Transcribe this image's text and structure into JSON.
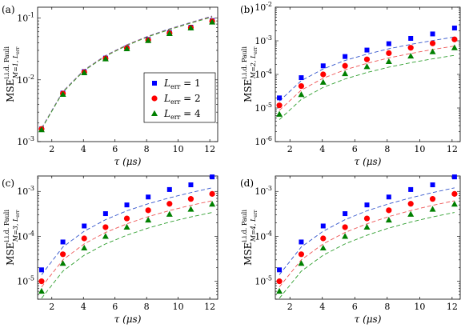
{
  "figure": {
    "x_axis_label": "τ (μs)",
    "x_ticks": [
      2,
      4,
      6,
      8,
      10,
      12
    ],
    "legend": {
      "entries": [
        {
          "label": "L_err = 1",
          "marker": "square",
          "color": "#0000ff"
        },
        {
          "label": "L_err = 2",
          "marker": "circle",
          "color": "#ff0000"
        },
        {
          "label": "L_err = 4",
          "marker": "triangle",
          "color": "#008000"
        }
      ]
    },
    "colors": {
      "L1": "#0000ff",
      "L2": "#ff0000",
      "L4": "#008000",
      "L1_fit": "#3355cc",
      "L2_fit": "#ee5555",
      "L4_fit": "#2f9f2f"
    }
  },
  "chart_data": [
    {
      "panel": "(a)",
      "type": "scatter",
      "ylabel": "MSE^{i.i.d. Pauli}_{M=1, L_err}",
      "yscale": "log",
      "xlim": [
        1.1,
        12.5
      ],
      "ylim": [
        0.001,
        0.15
      ],
      "x": [
        1.35,
        2.7,
        4.05,
        5.4,
        6.75,
        8.1,
        9.45,
        10.8,
        12.15
      ],
      "series": [
        {
          "name": "L_err = 1",
          "marker": "square",
          "values": [
            0.0016,
            0.0061,
            0.0136,
            0.0225,
            0.033,
            0.045,
            0.058,
            0.071,
            0.091
          ]
        },
        {
          "name": "L_err = 2",
          "marker": "circle",
          "values": [
            0.0016,
            0.006,
            0.0133,
            0.0222,
            0.0325,
            0.044,
            0.057,
            0.07,
            0.089
          ]
        },
        {
          "name": "L_err = 4",
          "marker": "triangle",
          "values": [
            0.00155,
            0.0058,
            0.013,
            0.0218,
            0.0318,
            0.0432,
            0.056,
            0.069,
            0.086
          ]
        }
      ],
      "fits": [
        {
          "of": "L_err = 1",
          "values": [
            0.00165,
            0.0065,
            0.0145,
            0.0248,
            0.037,
            0.051,
            0.067,
            0.085,
            0.108
          ]
        },
        {
          "of": "L_err = 2",
          "values": [
            0.00162,
            0.0064,
            0.0143,
            0.0245,
            0.0366,
            0.0505,
            0.066,
            0.084,
            0.106
          ]
        },
        {
          "of": "L_err = 4",
          "values": [
            0.0016,
            0.0063,
            0.0141,
            0.0241,
            0.036,
            0.05,
            0.065,
            0.083,
            0.104
          ]
        }
      ],
      "ytick_labels": [
        "10^-3",
        "10^-2",
        "10^-1"
      ],
      "yticks": [
        0.001,
        0.01,
        0.1
      ]
    },
    {
      "panel": "(b)",
      "type": "scatter",
      "ylabel": "MSE^{i.i.d. Pauli}_{M=2, L_err}",
      "yscale": "log",
      "xlim": [
        1.1,
        12.5
      ],
      "ylim": [
        1e-06,
        0.01
      ],
      "x": [
        1.35,
        2.7,
        4.05,
        5.4,
        6.75,
        8.1,
        9.45,
        10.8,
        12.15
      ],
      "series": [
        {
          "name": "L_err = 1",
          "marker": "square",
          "values": [
            2e-05,
            8e-05,
            0.00018,
            0.00034,
            0.00053,
            0.00082,
            0.00118,
            0.0016,
            0.0024
          ]
        },
        {
          "name": "L_err = 2",
          "marker": "circle",
          "values": [
            1.2e-05,
            4.5e-05,
            0.0001,
            0.00018,
            0.00028,
            0.00043,
            0.00062,
            0.00084,
            0.0011
          ]
        },
        {
          "name": "L_err = 4",
          "marker": "triangle",
          "values": [
            6.5e-06,
            2.5e-05,
            5.8e-05,
            0.000105,
            0.00017,
            0.00024,
            0.00035,
            0.00047,
            0.00062
          ]
        }
      ],
      "fits": [
        {
          "of": "L_err = 1",
          "values": [
            1.6e-05,
            6.5e-05,
            0.000145,
            0.00026,
            0.0004,
            0.00058,
            0.00078,
            0.00102,
            0.0013
          ]
        },
        {
          "of": "L_err = 2",
          "values": [
            8.5e-06,
            3.4e-05,
            7.7e-05,
            0.000137,
            0.000213,
            0.00031,
            0.00042,
            0.00055,
            0.0007
          ]
        },
        {
          "of": "L_err = 4",
          "values": [
            4.5e-06,
            1.8e-05,
            4.1e-05,
            7.3e-05,
            0.000114,
            0.000164,
            0.000223,
            0.00029,
            0.00037
          ]
        }
      ],
      "ytick_labels": [
        "10^-6",
        "10^-5",
        "10^-4",
        "10^-3",
        "10^-2"
      ],
      "yticks": [
        1e-06,
        1e-05,
        0.0001,
        0.001,
        0.01
      ]
    },
    {
      "panel": "(c)",
      "type": "scatter",
      "ylabel": "MSE^{i.i.d. Pauli}_{M=3, L_err}",
      "yscale": "log",
      "xlim": [
        1.1,
        12.5
      ],
      "ylim": [
        4e-06,
        0.0022
      ],
      "x": [
        1.35,
        2.7,
        4.05,
        5.4,
        6.75,
        8.1,
        9.45,
        10.8,
        12.15
      ],
      "series": [
        {
          "name": "L_err = 1",
          "marker": "square",
          "values": [
            1.8e-05,
            7.5e-05,
            0.00017,
            0.00032,
            0.0005,
            0.00075,
            0.0011,
            0.0014,
            0.0021
          ]
        },
        {
          "name": "L_err = 2",
          "marker": "circle",
          "values": [
            1e-05,
            4e-05,
            9e-05,
            0.00016,
            0.00025,
            0.00038,
            0.00053,
            0.00068,
            0.00088
          ]
        },
        {
          "name": "L_err = 4",
          "marker": "triangle",
          "values": [
            6e-06,
            2.5e-05,
            5.5e-05,
            0.0001,
            0.00016,
            0.00023,
            0.00031,
            0.0004,
            0.00052
          ]
        }
      ],
      "fits": [
        {
          "of": "L_err = 1",
          "values": [
            1.4e-05,
            5.8e-05,
            0.00013,
            0.000235,
            0.00037,
            0.00053,
            0.00072,
            0.00094,
            0.0012
          ]
        },
        {
          "of": "L_err = 2",
          "values": [
            7.5e-06,
            3e-05,
            6.8e-05,
            0.000122,
            0.00019,
            0.000275,
            0.000375,
            0.00049,
            0.00062
          ]
        },
        {
          "of": "L_err = 4",
          "values": [
            4.2e-06,
            1.68e-05,
            3.8e-05,
            6.8e-05,
            0.000106,
            0.000153,
            0.000208,
            0.00027,
            0.00034
          ]
        }
      ],
      "ytick_labels": [
        "10^-5",
        "10^-4",
        "10^-3"
      ],
      "yticks": [
        1e-05,
        0.0001,
        0.001
      ]
    },
    {
      "panel": "(d)",
      "type": "scatter",
      "ylabel": "MSE^{i.i.d. Pauli}_{M=4, L_err}",
      "yscale": "log",
      "xlim": [
        1.1,
        12.5
      ],
      "ylim": [
        4e-06,
        0.0022
      ],
      "x": [
        1.35,
        2.7,
        4.05,
        5.4,
        6.75,
        8.1,
        9.45,
        10.8,
        12.15
      ],
      "series": [
        {
          "name": "L_err = 1",
          "marker": "square",
          "values": [
            1.8e-05,
            7.5e-05,
            0.00017,
            0.00032,
            0.0005,
            0.00075,
            0.0011,
            0.0014,
            0.0021
          ]
        },
        {
          "name": "L_err = 2",
          "marker": "circle",
          "values": [
            1e-05,
            4e-05,
            9e-05,
            0.00016,
            0.00025,
            0.00038,
            0.00053,
            0.00068,
            0.00088
          ]
        },
        {
          "name": "L_err = 4",
          "marker": "triangle",
          "values": [
            6e-06,
            2.5e-05,
            5.5e-05,
            0.0001,
            0.00016,
            0.00023,
            0.00031,
            0.0004,
            0.00052
          ]
        }
      ],
      "fits": [
        {
          "of": "L_err = 1",
          "values": [
            1.4e-05,
            5.8e-05,
            0.00013,
            0.000235,
            0.00037,
            0.00053,
            0.00072,
            0.00094,
            0.0012
          ]
        },
        {
          "of": "L_err = 2",
          "values": [
            7.5e-06,
            3e-05,
            6.8e-05,
            0.000122,
            0.00019,
            0.000275,
            0.000375,
            0.00049,
            0.00062
          ]
        },
        {
          "of": "L_err = 4",
          "values": [
            4.2e-06,
            1.68e-05,
            3.8e-05,
            6.8e-05,
            0.000106,
            0.000153,
            0.000208,
            0.00027,
            0.00034
          ]
        }
      ],
      "ytick_labels": [
        "10^-5",
        "10^-4",
        "10^-3"
      ],
      "yticks": [
        1e-05,
        0.0001,
        0.001
      ]
    }
  ]
}
